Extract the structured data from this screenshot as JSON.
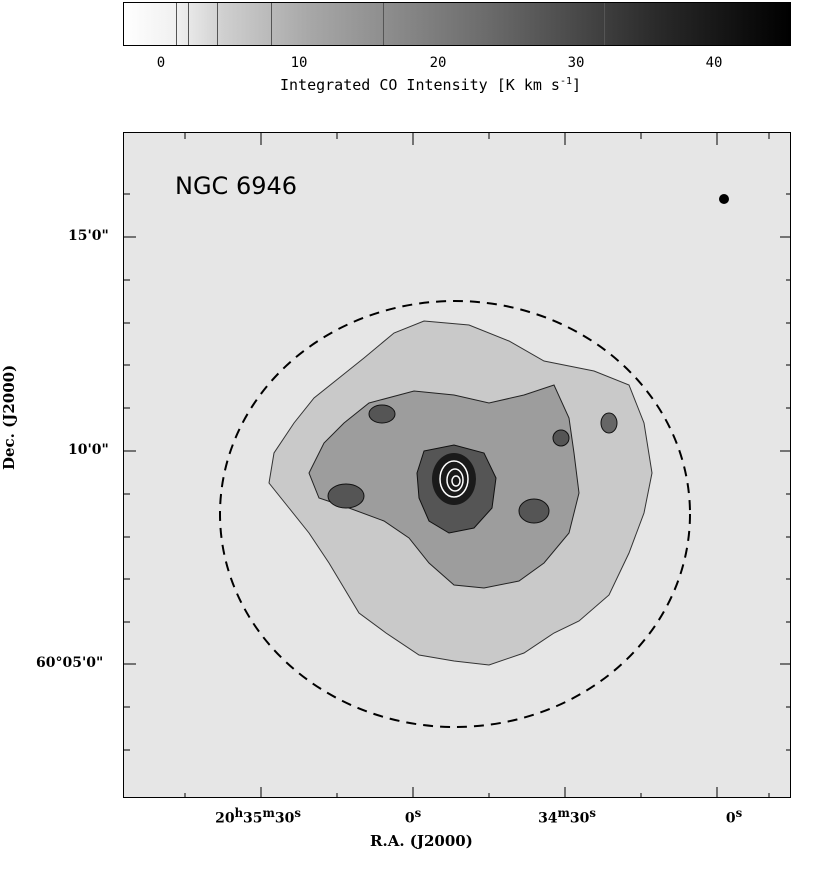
{
  "colorbar": {
    "ticks": [
      "0",
      "10",
      "20",
      "30",
      "40"
    ],
    "label": "Integrated CO Intensity [K km s",
    "label_exp": "-1",
    "label_close": "]"
  },
  "plot": {
    "title": "NGC 6946",
    "y_ticks": [
      {
        "deg": "15",
        "min": "'",
        "sec": "0\""
      },
      {
        "deg": "10",
        "min": "'",
        "sec": "0\""
      },
      {
        "deg": "60°05",
        "min": "'",
        "sec": "0\""
      }
    ],
    "x_ticks": [
      {
        "h": "20",
        "hu": "h",
        "m": "35",
        "mu": "m",
        "s": "30",
        "su": "s"
      },
      {
        "s": "0",
        "su": "s"
      },
      {
        "m": "34",
        "mu": "m",
        "s": "30",
        "su": "s"
      },
      {
        "s": "0",
        "su": "s"
      }
    ],
    "xlabel": "R.A. (J2000)",
    "ylabel": "Dec. (J2000)"
  },
  "chart_data": {
    "type": "heatmap",
    "title": "NGC 6946",
    "xlabel": "R.A. (J2000)",
    "ylabel": "Dec. (J2000)",
    "x_ticks": [
      "20h35m30s",
      "0s",
      "34m30s",
      "0s"
    ],
    "y_ticks": [
      "15'0\"",
      "10'0\"",
      "60°05'0\""
    ],
    "colorbar": {
      "label": "Integrated CO Intensity [K km s^-1]",
      "range": [
        0,
        45
      ],
      "ticks": [
        0,
        10,
        20,
        30,
        40
      ]
    },
    "colors": {
      "background": "#e6e6e6",
      "low": "#ffffff",
      "high": "#000000"
    }
  }
}
